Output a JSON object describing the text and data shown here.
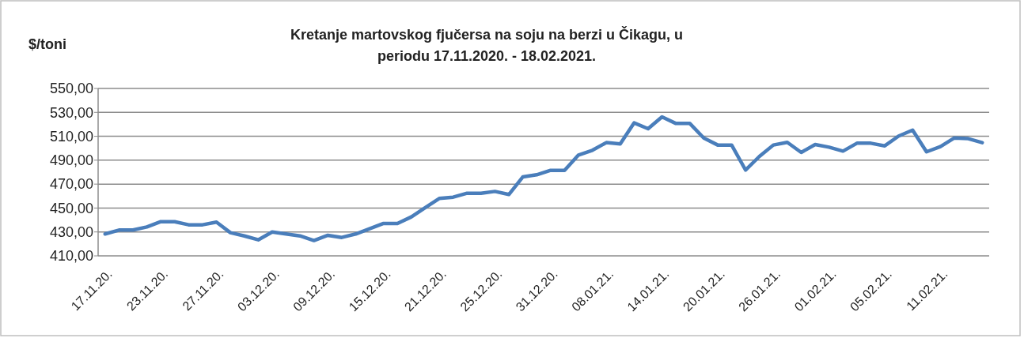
{
  "chart_data": {
    "type": "line",
    "title": "Kretanje martovskog fjučersa na soju na berzi u Čikagu, u\nperiodu  17.11.2020. - 18.02.2021.",
    "ylabel": "$/toni",
    "categories": [
      "17.11.20.",
      null,
      null,
      null,
      "23.11.20.",
      null,
      null,
      null,
      "27.11.20.",
      null,
      null,
      null,
      "03.12.20.",
      null,
      null,
      null,
      "09.12.20.",
      null,
      null,
      null,
      "15.12.20.",
      null,
      null,
      null,
      "21.12.20.",
      null,
      null,
      null,
      "25.12.20.",
      null,
      null,
      null,
      "31.12.20.",
      null,
      null,
      null,
      "08.01.21.",
      null,
      null,
      null,
      "14.01.21.",
      null,
      null,
      null,
      "20.01.21.",
      null,
      null,
      null,
      "26.01.21.",
      null,
      null,
      null,
      "01.02.21.",
      null,
      null,
      null,
      "05.02.21.",
      null,
      null,
      null,
      "11.02.21.",
      null,
      null,
      null
    ],
    "series": [
      {
        "color": "#4a7ebb",
        "values": [
          428.3,
          431.6,
          431.6,
          434.2,
          438.6,
          438.6,
          436,
          436,
          438.2,
          429.4,
          426.7,
          423.4,
          430,
          428.3,
          426.7,
          422.8,
          427.2,
          425.4,
          428.3,
          432.7,
          437.1,
          437.1,
          442.6,
          450.3,
          458,
          459.1,
          462.4,
          462.4,
          463.9,
          461.3,
          476,
          477.8,
          481.5,
          481.5,
          494.3,
          498.3,
          504.7,
          503.6,
          521.2,
          516.3,
          526.2,
          520.7,
          520.7,
          508.6,
          502.7,
          502.7,
          481.8,
          493.2,
          502.7,
          504.9,
          496.5,
          503.1,
          500.9,
          497.6,
          504.2,
          504.2,
          502,
          510.2,
          515.2,
          497,
          501.4,
          508.6,
          508,
          504.7
        ]
      }
    ],
    "ylim": [
      410,
      550
    ],
    "yticks": [
      {
        "value": 410,
        "label": "410,00"
      },
      {
        "value": 430,
        "label": "430,00"
      },
      {
        "value": 450,
        "label": "450,00"
      },
      {
        "value": 470,
        "label": "470,00"
      },
      {
        "value": 490,
        "label": "490,00"
      },
      {
        "value": 510,
        "label": "510,00"
      },
      {
        "value": 530,
        "label": "530,00"
      },
      {
        "value": 550,
        "label": "550,00"
      }
    ],
    "grid": "y",
    "marker": "none",
    "line_style": "solid"
  }
}
